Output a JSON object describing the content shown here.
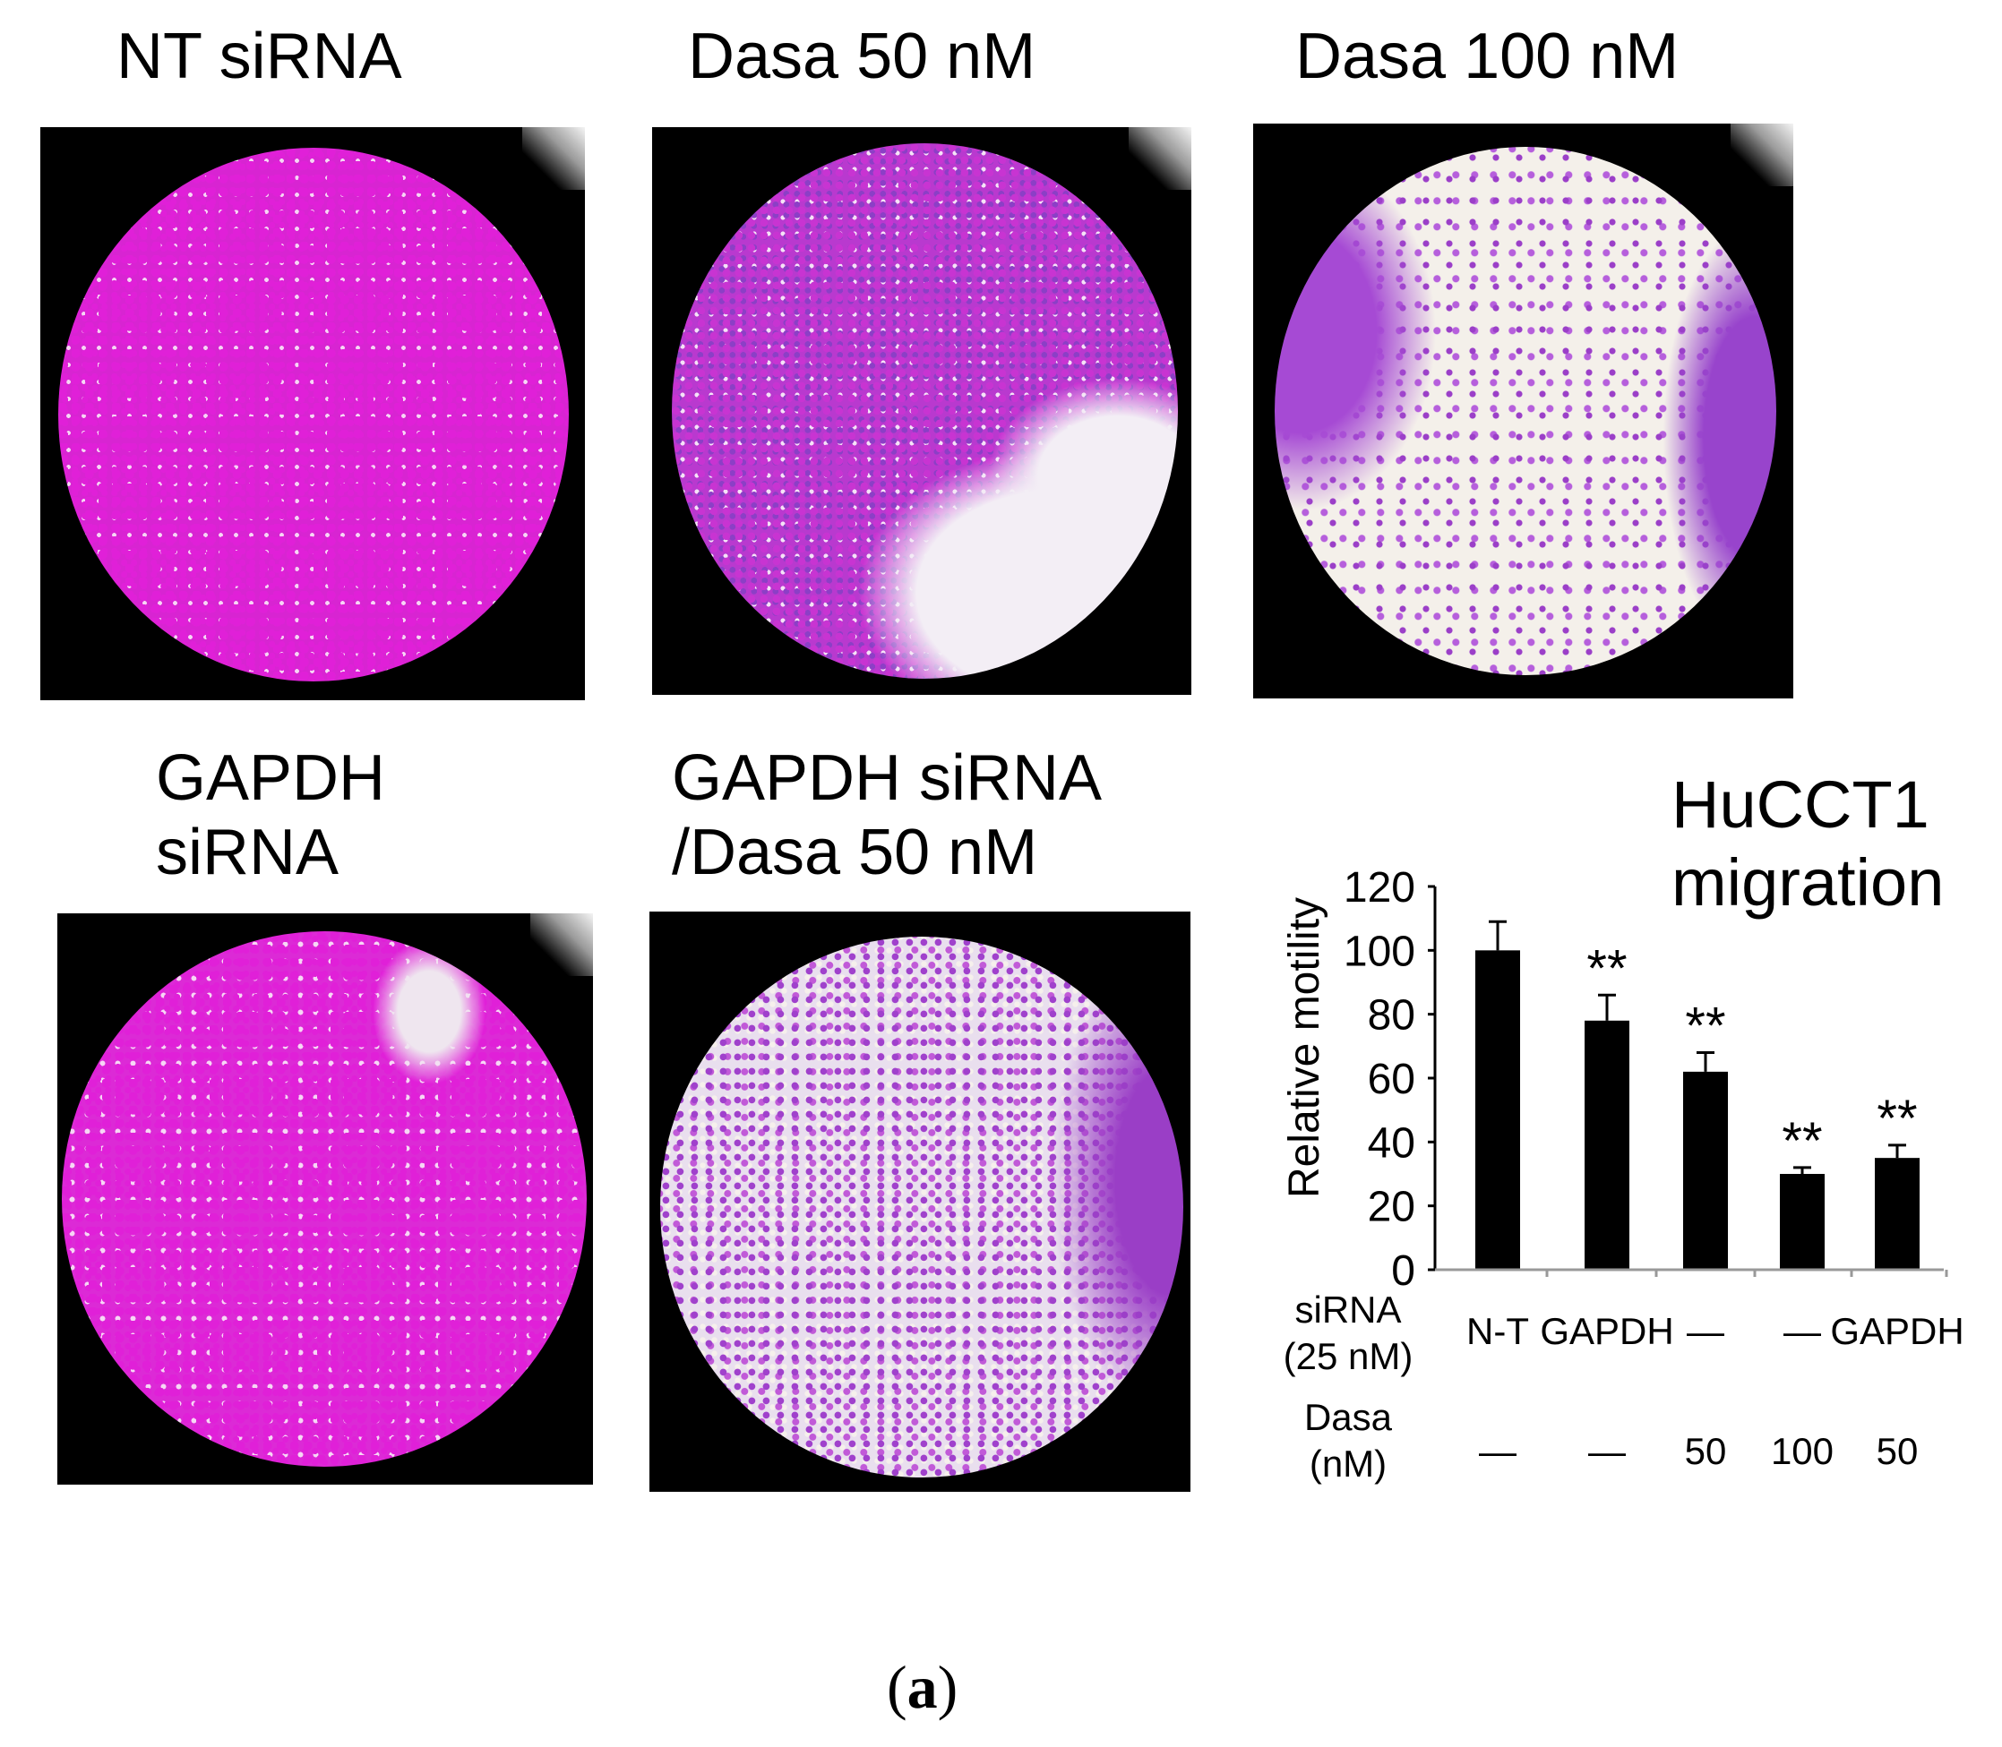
{
  "panels": [
    {
      "label": "NT siRNA",
      "palette": "dense-magenta"
    },
    {
      "label": "Dasa 50 nM",
      "palette": "magenta-partial"
    },
    {
      "label": "Dasa 100 nM",
      "palette": "sparse-purple"
    },
    {
      "label_lines": [
        "GAPDH",
        "siRNA"
      ],
      "palette": "dense-magenta"
    },
    {
      "label_lines": [
        "GAPDH siRNA",
        "/Dasa 50 nM"
      ],
      "palette": "purple-medium"
    }
  ],
  "colors": {
    "magenta": "#e020d8",
    "purple": "#9b3fc8",
    "well_background": "#f3eef5",
    "frame": "#000000"
  },
  "chart_data": {
    "type": "bar",
    "title_lines": [
      "HuCCT1",
      "migration"
    ],
    "ylabel": "Relative motility",
    "ylim": [
      0,
      120
    ],
    "yticks": [
      0,
      20,
      40,
      60,
      80,
      100,
      120
    ],
    "values": [
      100,
      78,
      62,
      30,
      35
    ],
    "errors": [
      9,
      8,
      6,
      2,
      4
    ],
    "significance": [
      "",
      "**",
      "**",
      "**",
      "**"
    ],
    "row_labels": [
      {
        "lines": [
          "siRNA",
          "(25 nM)"
        ],
        "values": [
          "N-T",
          "GAPDH",
          "—",
          "—",
          "GAPDH"
        ]
      },
      {
        "lines": [
          "Dasa",
          "(nM)"
        ],
        "values": [
          "—",
          "—",
          "50",
          "100",
          "50"
        ]
      }
    ],
    "bar_color": "#000000"
  },
  "caption": {
    "open": "(",
    "letter": "a",
    "close": ")"
  }
}
